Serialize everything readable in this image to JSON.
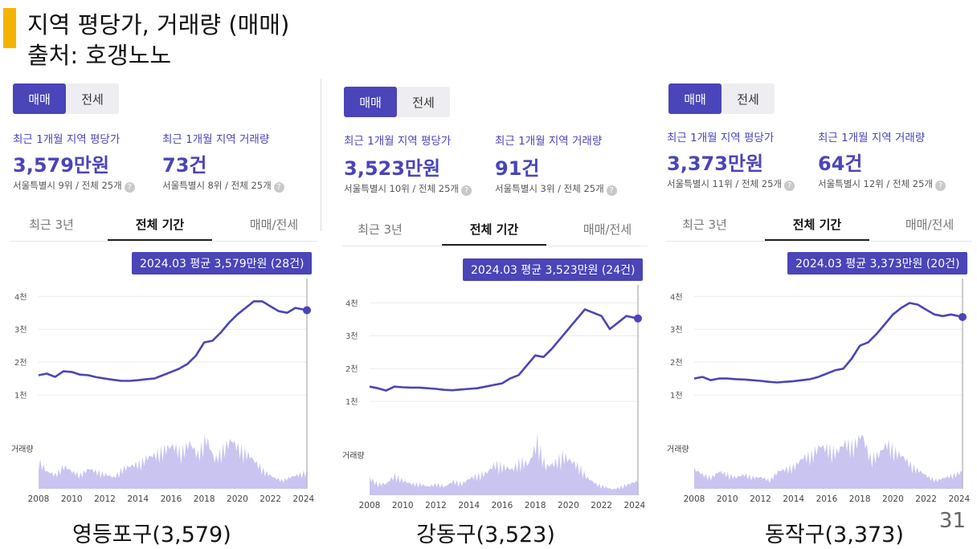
{
  "slide": {
    "title": "지역 평당가, 거래량 (매매)",
    "source": "출처: 호갱노노",
    "page_number": "31",
    "accent_color": "#f5b301"
  },
  "common": {
    "toggle": [
      "매매",
      "전세"
    ],
    "label_price": "최근 1개월 지역 평당가",
    "label_volume": "최근 1개월 지역 거래량",
    "tabs": [
      "최근 3년",
      "전체 기간",
      "매매/전세"
    ],
    "help_icon": "?",
    "y_tick_labels": [
      "4천",
      "3천",
      "2천",
      "1천"
    ],
    "volume_label": "거래량",
    "x_tick_labels": [
      "2008",
      "2010",
      "2012",
      "2014",
      "2016",
      "2018",
      "2020",
      "2022",
      "2024"
    ],
    "line_color": "#4a45b8",
    "volume_color": "#c9c5f0"
  },
  "panels": [
    {
      "price": "3,579만원",
      "volume": "73건",
      "price_rank": "서울특별시 9위 / 전체 25개",
      "volume_rank": "서울특별시 8위 / 전체 25개",
      "tooltip": "2024.03 평균 3,579만원 (28건)",
      "caption": "영등포구(3,579)"
    },
    {
      "price": "3,523만원",
      "volume": "91건",
      "price_rank": "서울특별시 10위 / 전체 25개",
      "volume_rank": "서울특별시 3위 / 전체 25개",
      "tooltip": "2024.03 평균 3,523만원 (24건)",
      "caption": "강동구(3,523)"
    },
    {
      "price": "3,373만원",
      "volume": "64건",
      "price_rank": "서울특별시 11위 / 전체 25개",
      "volume_rank": "서울특별시 12위 / 전체 25개",
      "tooltip": "2024.03 평균 3,373만원 (20건)",
      "caption": "동작구(3,373)"
    }
  ],
  "chart_data": [
    {
      "type": "line",
      "title": "",
      "x": [
        2008.0,
        2008.5,
        2009.0,
        2009.5,
        2010.0,
        2010.5,
        2011.0,
        2011.5,
        2012.0,
        2012.5,
        2013.0,
        2013.5,
        2014.0,
        2014.5,
        2015.0,
        2015.5,
        2016.0,
        2016.5,
        2017.0,
        2017.5,
        2018.0,
        2018.5,
        2019.0,
        2019.5,
        2020.0,
        2020.5,
        2021.0,
        2021.5,
        2022.0,
        2022.5,
        2023.0,
        2023.5,
        2024.2
      ],
      "series": [
        {
          "values": [
            1600,
            1650,
            1550,
            1720,
            1700,
            1620,
            1600,
            1540,
            1500,
            1460,
            1430,
            1430,
            1450,
            1480,
            1500,
            1600,
            1700,
            1800,
            1950,
            2200,
            2600,
            2650,
            2900,
            3200,
            3450,
            3650,
            3850,
            3850,
            3700,
            3550,
            3500,
            3650,
            3579
          ]
        }
      ],
      "ylim": [
        0,
        4300
      ],
      "volume_relative": [
        0.5,
        0.3,
        0.25,
        0.4,
        0.3,
        0.25,
        0.35,
        0.3,
        0.25,
        0.2,
        0.35,
        0.4,
        0.45,
        0.55,
        0.6,
        0.7,
        0.75,
        0.65,
        0.8,
        0.6,
        0.9,
        0.5,
        0.7,
        0.85,
        0.7,
        0.6,
        0.45,
        0.3,
        0.2,
        0.15,
        0.2,
        0.25,
        0.3
      ]
    },
    {
      "type": "line",
      "title": "",
      "x": [
        2008.0,
        2008.5,
        2009.0,
        2009.5,
        2010.0,
        2010.5,
        2011.0,
        2011.5,
        2012.0,
        2012.5,
        2013.0,
        2013.5,
        2014.0,
        2014.5,
        2015.0,
        2015.5,
        2016.0,
        2016.5,
        2017.0,
        2017.5,
        2018.0,
        2018.5,
        2019.0,
        2019.5,
        2020.0,
        2020.5,
        2021.0,
        2021.5,
        2022.0,
        2022.5,
        2023.0,
        2023.5,
        2024.2
      ],
      "series": [
        {
          "values": [
            1450,
            1400,
            1330,
            1450,
            1430,
            1420,
            1420,
            1400,
            1380,
            1350,
            1340,
            1360,
            1380,
            1400,
            1450,
            1500,
            1550,
            1700,
            1800,
            2100,
            2400,
            2350,
            2600,
            2900,
            3200,
            3500,
            3800,
            3700,
            3600,
            3200,
            3400,
            3600,
            3523
          ]
        }
      ],
      "ylim": [
        0,
        4300
      ],
      "volume_relative": [
        0.3,
        0.2,
        0.2,
        0.35,
        0.25,
        0.2,
        0.2,
        0.15,
        0.2,
        0.15,
        0.25,
        0.2,
        0.3,
        0.35,
        0.4,
        0.55,
        0.5,
        0.45,
        0.6,
        0.55,
        0.95,
        0.5,
        0.55,
        0.7,
        0.6,
        0.5,
        0.3,
        0.2,
        0.15,
        0.1,
        0.15,
        0.2,
        0.25
      ]
    },
    {
      "type": "line",
      "title": "",
      "x": [
        2008.0,
        2008.5,
        2009.0,
        2009.5,
        2010.0,
        2010.5,
        2011.0,
        2011.5,
        2012.0,
        2012.5,
        2013.0,
        2013.5,
        2014.0,
        2014.5,
        2015.0,
        2015.5,
        2016.0,
        2016.5,
        2017.0,
        2017.5,
        2018.0,
        2018.5,
        2019.0,
        2019.5,
        2020.0,
        2020.5,
        2021.0,
        2021.5,
        2022.0,
        2022.5,
        2023.0,
        2023.5,
        2024.2
      ],
      "series": [
        {
          "values": [
            1500,
            1550,
            1450,
            1500,
            1500,
            1480,
            1470,
            1450,
            1430,
            1400,
            1380,
            1400,
            1420,
            1450,
            1480,
            1550,
            1650,
            1750,
            1800,
            2100,
            2500,
            2600,
            2850,
            3150,
            3450,
            3650,
            3800,
            3750,
            3600,
            3450,
            3400,
            3450,
            3373
          ]
        }
      ],
      "ylim": [
        0,
        4300
      ],
      "volume_relative": [
        0.35,
        0.25,
        0.2,
        0.3,
        0.25,
        0.2,
        0.25,
        0.2,
        0.2,
        0.15,
        0.3,
        0.35,
        0.4,
        0.55,
        0.6,
        0.75,
        0.7,
        0.65,
        0.8,
        0.75,
        0.95,
        0.55,
        0.6,
        0.8,
        0.65,
        0.55,
        0.4,
        0.3,
        0.2,
        0.15,
        0.2,
        0.25,
        0.3
      ]
    }
  ]
}
